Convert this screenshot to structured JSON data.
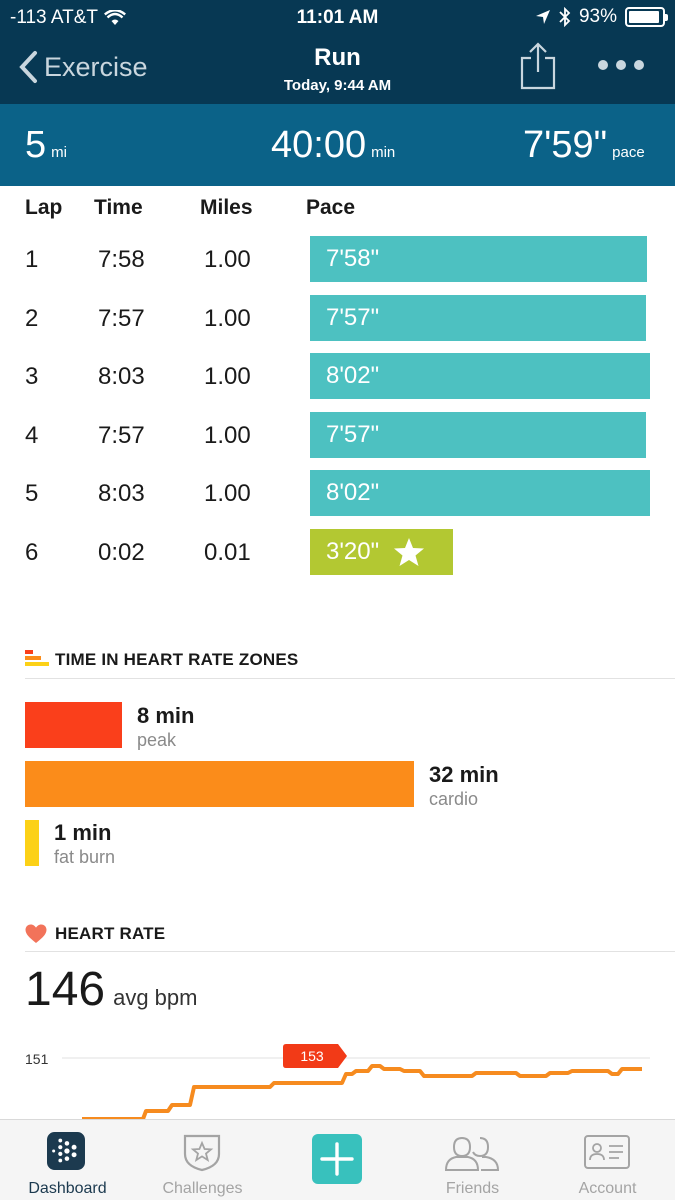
{
  "status_bar": {
    "carrier": "-113 AT&T",
    "time": "11:01 AM",
    "battery": "93%",
    "battery_level": 0.93
  },
  "nav": {
    "back_label": "Exercise",
    "title": "Run",
    "subtitle": "Today, 9:44 AM"
  },
  "summary": [
    {
      "value": "5",
      "unit": "mi"
    },
    {
      "value": "40:00",
      "unit": "min"
    },
    {
      "value": "7'59\"",
      "unit": "pace"
    }
  ],
  "laps": {
    "headers": [
      "Lap",
      "Time",
      "Miles",
      "Pace"
    ],
    "rows": [
      {
        "lap": "1",
        "time": "7:58",
        "miles": "1.00",
        "pace": "7'58\"",
        "pace_seconds": 478,
        "best": false
      },
      {
        "lap": "2",
        "time": "7:57",
        "miles": "1.00",
        "pace": "7'57\"",
        "pace_seconds": 477,
        "best": false
      },
      {
        "lap": "3",
        "time": "8:03",
        "miles": "1.00",
        "pace": "8'02\"",
        "pace_seconds": 482,
        "best": false
      },
      {
        "lap": "4",
        "time": "7:57",
        "miles": "1.00",
        "pace": "7'57\"",
        "pace_seconds": 477,
        "best": false
      },
      {
        "lap": "5",
        "time": "8:03",
        "miles": "1.00",
        "pace": "8'02\"",
        "pace_seconds": 482,
        "best": false
      },
      {
        "lap": "6",
        "time": "0:02",
        "miles": "0.01",
        "pace": "3'20\"",
        "pace_seconds": 200,
        "best": true
      }
    ]
  },
  "zones": {
    "title": "TIME IN HEART RATE ZONES",
    "items": [
      {
        "minutes": 8,
        "min_label": "8 min",
        "name": "peak",
        "color": "#fa3f1b"
      },
      {
        "minutes": 32,
        "min_label": "32 min",
        "name": "cardio",
        "color": "#fb8c1a"
      },
      {
        "minutes": 1,
        "min_label": "1 min",
        "name": "fat burn",
        "color": "#fcd117"
      }
    ]
  },
  "heart_rate": {
    "title": "HEART RATE",
    "avg_value": "146",
    "avg_unit": "avg bpm",
    "gridline_label": "151",
    "peak_label": "153"
  },
  "colors": {
    "nav_bg": "#073853",
    "summary_bg": "#0b6288",
    "pace_bar": "#4dc1c1",
    "best_bar": "#b3c832",
    "hr_line": "#f68b1f"
  },
  "tabs": [
    {
      "label": "Dashboard",
      "icon": "dashboard-icon",
      "active": true
    },
    {
      "label": "Challenges",
      "icon": "challenges-icon",
      "active": false
    },
    {
      "label": "",
      "icon": "add-icon",
      "active": false
    },
    {
      "label": "Friends",
      "icon": "friends-icon",
      "active": false
    },
    {
      "label": "Account",
      "icon": "account-icon",
      "active": false
    }
  ]
}
